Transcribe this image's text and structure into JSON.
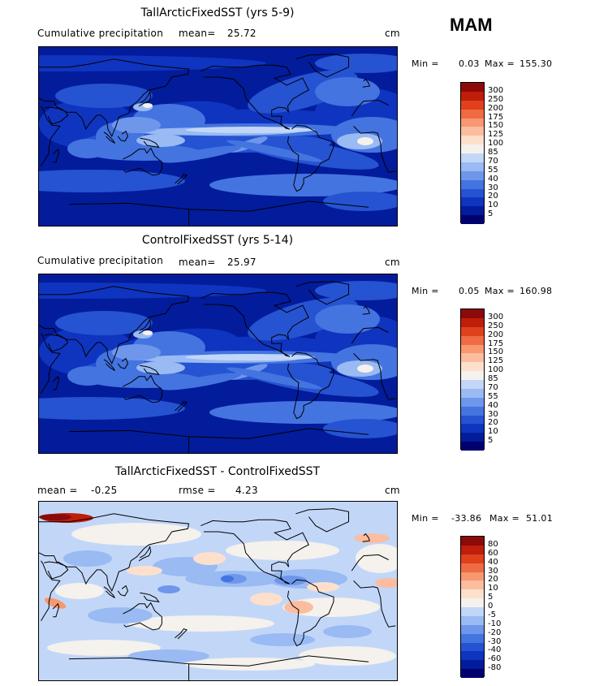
{
  "season": "MAM",
  "panels": [
    {
      "title": "TallArcticFixedSST (yrs 5-9)",
      "left_label": "Cumulative precipitation",
      "mean_label": "mean=",
      "mean_value": "25.72",
      "unit": "cm",
      "min_label": "Min =",
      "min_value": "0.03",
      "max_label": "Max =",
      "max_value": "155.30"
    },
    {
      "title": "ControlFixedSST (yrs 5-14)",
      "left_label": "Cumulative precipitation",
      "mean_label": "mean=",
      "mean_value": "25.97",
      "unit": "cm",
      "min_label": "Min =",
      "min_value": "0.05",
      "max_label": "Max =",
      "max_value": "160.98"
    },
    {
      "title": "TallArcticFixedSST - ControlFixedSST",
      "mean_label": "mean =",
      "mean_value": "-0.25",
      "rmse_label": "rmse =",
      "rmse_value": "4.23",
      "unit": "cm",
      "min_label": "Min =",
      "min_value": "-33.86",
      "max_label": "Max =",
      "max_value": "51.01"
    }
  ],
  "chart_data": [
    {
      "type": "heatmap",
      "title": "TallArcticFixedSST (yrs 5-9)",
      "variable": "Cumulative precipitation",
      "unit": "cm",
      "mean": 25.72,
      "min": 0.03,
      "max": 155.3,
      "colorbar_levels": [
        "300",
        "250",
        "200",
        "175",
        "150",
        "125",
        "100",
        "85",
        "70",
        "55",
        "40",
        "30",
        "20",
        "10",
        "5"
      ],
      "colorbar_colors": [
        "#8c0a0a",
        "#be1e0a",
        "#e0401c",
        "#ef6b43",
        "#f79870",
        "#fbbca0",
        "#fde0cc",
        "#f5f1ec",
        "#c2d7f8",
        "#99baf3",
        "#6e97eb",
        "#4474e0",
        "#2553d2",
        "#0f34bf",
        "#031c9b",
        "#00006e"
      ]
    },
    {
      "type": "heatmap",
      "title": "ControlFixedSST (yrs 5-14)",
      "variable": "Cumulative precipitation",
      "unit": "cm",
      "mean": 25.97,
      "min": 0.05,
      "max": 160.98,
      "colorbar_levels": [
        "300",
        "250",
        "200",
        "175",
        "150",
        "125",
        "100",
        "85",
        "70",
        "55",
        "40",
        "30",
        "20",
        "10",
        "5"
      ],
      "colorbar_colors": [
        "#8c0a0a",
        "#be1e0a",
        "#e0401c",
        "#ef6b43",
        "#f79870",
        "#fbbca0",
        "#fde0cc",
        "#f5f1ec",
        "#c2d7f8",
        "#99baf3",
        "#6e97eb",
        "#4474e0",
        "#2553d2",
        "#0f34bf",
        "#031c9b",
        "#00006e"
      ]
    },
    {
      "type": "heatmap",
      "title": "TallArcticFixedSST - ControlFixedSST",
      "unit": "cm",
      "mean": -0.25,
      "rmse": 4.23,
      "min": -33.86,
      "max": 51.01,
      "colorbar_levels": [
        "80",
        "60",
        "40",
        "30",
        "20",
        "10",
        "5",
        "0",
        "-5",
        "-10",
        "-20",
        "-30",
        "-40",
        "-60",
        "-80"
      ],
      "colorbar_colors": [
        "#8c0a0a",
        "#be1e0a",
        "#e0401c",
        "#ef6b43",
        "#f79870",
        "#fbbca0",
        "#fde0cc",
        "#f5f1ec",
        "#c2d7f8",
        "#99baf3",
        "#6e97eb",
        "#4474e0",
        "#2553d2",
        "#0f34bf",
        "#031c9b",
        "#00006e"
      ]
    }
  ]
}
